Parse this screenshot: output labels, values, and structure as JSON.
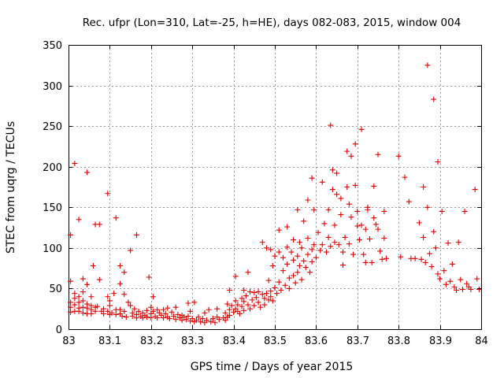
{
  "chart_data": {
    "type": "scatter",
    "title": "Rec. ufpr (Lon=310, Lat=-25, h=HE), days 082-083, 2015, window 004",
    "xlabel": "GPS time / Days of year 2015",
    "ylabel": "STEC from uqrg / TECUs",
    "xlim": [
      83,
      84
    ],
    "ylim": [
      0,
      350
    ],
    "xticks": [
      "83",
      "83.1",
      "83.2",
      "83.3",
      "83.4",
      "83.5",
      "83.6",
      "83.7",
      "83.8",
      "83.9",
      "84"
    ],
    "yticks": [
      "0",
      "50",
      "100",
      "150",
      "200",
      "250",
      "300",
      "350"
    ],
    "grid": true,
    "legend": "none",
    "marker": "plus",
    "color": "#e00000",
    "series": [
      {
        "points": [
          [
            83.005,
            116
          ],
          [
            83.005,
            59
          ],
          [
            83.005,
            33
          ],
          [
            83.005,
            27
          ],
          [
            83.005,
            21
          ],
          [
            83.015,
            204
          ],
          [
            83.015,
            44
          ],
          [
            83.015,
            38
          ],
          [
            83.015,
            30
          ],
          [
            83.015,
            22
          ],
          [
            83.025,
            135
          ],
          [
            83.025,
            40
          ],
          [
            83.025,
            33
          ],
          [
            83.025,
            26
          ],
          [
            83.025,
            22
          ],
          [
            83.035,
            62
          ],
          [
            83.035,
            46
          ],
          [
            83.035,
            35
          ],
          [
            83.035,
            27
          ],
          [
            83.035,
            20
          ],
          [
            83.045,
            193
          ],
          [
            83.045,
            55
          ],
          [
            83.045,
            31
          ],
          [
            83.045,
            26
          ],
          [
            83.045,
            19
          ],
          [
            83.055,
            40
          ],
          [
            83.055,
            29
          ],
          [
            83.055,
            24
          ],
          [
            83.055,
            19
          ],
          [
            83.06,
            78
          ],
          [
            83.065,
            129
          ],
          [
            83.065,
            27
          ],
          [
            83.065,
            22
          ],
          [
            83.07,
            28
          ],
          [
            83.075,
            129
          ],
          [
            83.075,
            61
          ],
          [
            83.08,
            22
          ],
          [
            83.085,
            25
          ],
          [
            83.085,
            19
          ],
          [
            83.095,
            167
          ],
          [
            83.095,
            40
          ],
          [
            83.095,
            22
          ],
          [
            83.1,
            35
          ],
          [
            83.1,
            29
          ],
          [
            83.1,
            18
          ],
          [
            83.105,
            20
          ],
          [
            83.11,
            44
          ],
          [
            83.115,
            137
          ],
          [
            83.115,
            24
          ],
          [
            83.115,
            18
          ],
          [
            83.125,
            78
          ],
          [
            83.125,
            56
          ],
          [
            83.125,
            24
          ],
          [
            83.125,
            19
          ],
          [
            83.13,
            16
          ],
          [
            83.135,
            70
          ],
          [
            83.135,
            43
          ],
          [
            83.135,
            22
          ],
          [
            83.14,
            15
          ],
          [
            83.145,
            33
          ],
          [
            83.15,
            97
          ],
          [
            83.15,
            29
          ],
          [
            83.155,
            20
          ],
          [
            83.155,
            16
          ],
          [
            83.16,
            25
          ],
          [
            83.165,
            116
          ],
          [
            83.165,
            18
          ],
          [
            83.165,
            14
          ],
          [
            83.17,
            22
          ],
          [
            83.175,
            16
          ],
          [
            83.18,
            20
          ],
          [
            83.18,
            14
          ],
          [
            83.185,
            17
          ],
          [
            83.19,
            23
          ],
          [
            83.19,
            15
          ],
          [
            83.195,
            64
          ],
          [
            83.2,
            27
          ],
          [
            83.2,
            19
          ],
          [
            83.2,
            14
          ],
          [
            83.205,
            40
          ],
          [
            83.205,
            22
          ],
          [
            83.21,
            16
          ],
          [
            83.215,
            24
          ],
          [
            83.215,
            14
          ],
          [
            83.22,
            20
          ],
          [
            83.225,
            17
          ],
          [
            83.23,
            24
          ],
          [
            83.23,
            14
          ],
          [
            83.235,
            19
          ],
          [
            83.24,
            26
          ],
          [
            83.24,
            15
          ],
          [
            83.245,
            13
          ],
          [
            83.25,
            21
          ],
          [
            83.255,
            16
          ],
          [
            83.26,
            27
          ],
          [
            83.26,
            12
          ],
          [
            83.265,
            18
          ],
          [
            83.27,
            14
          ],
          [
            83.275,
            17
          ],
          [
            83.275,
            11
          ],
          [
            83.28,
            15
          ],
          [
            83.285,
            12
          ],
          [
            83.29,
            32
          ],
          [
            83.29,
            16
          ],
          [
            83.295,
            22
          ],
          [
            83.295,
            10
          ],
          [
            83.3,
            13
          ],
          [
            83.305,
            33
          ],
          [
            83.305,
            9
          ],
          [
            83.31,
            11
          ],
          [
            83.315,
            15
          ],
          [
            83.32,
            9
          ],
          [
            83.325,
            13
          ],
          [
            83.33,
            20
          ],
          [
            83.33,
            8
          ],
          [
            83.335,
            11
          ],
          [
            83.34,
            24
          ],
          [
            83.345,
            9
          ],
          [
            83.35,
            13
          ],
          [
            83.355,
            8
          ],
          [
            83.36,
            25
          ],
          [
            83.36,
            15
          ],
          [
            83.365,
            12
          ],
          [
            83.375,
            14
          ],
          [
            83.38,
            20
          ],
          [
            83.38,
            11
          ],
          [
            83.385,
            15
          ],
          [
            83.385,
            31
          ],
          [
            83.39,
            48
          ],
          [
            83.39,
            24
          ],
          [
            83.39,
            17
          ],
          [
            83.395,
            29
          ],
          [
            83.4,
            21
          ],
          [
            83.405,
            65
          ],
          [
            83.405,
            35
          ],
          [
            83.405,
            25
          ],
          [
            83.41,
            30
          ],
          [
            83.41,
            22
          ],
          [
            83.415,
            19
          ],
          [
            83.42,
            38
          ],
          [
            83.42,
            28
          ],
          [
            83.425,
            48
          ],
          [
            83.425,
            34
          ],
          [
            83.425,
            23
          ],
          [
            83.43,
            41
          ],
          [
            83.435,
            70
          ],
          [
            83.435,
            30
          ],
          [
            83.44,
            46
          ],
          [
            83.44,
            25
          ],
          [
            83.445,
            36
          ],
          [
            83.45,
            45
          ],
          [
            83.45,
            29
          ],
          [
            83.455,
            39
          ],
          [
            83.46,
            46
          ],
          [
            83.46,
            33
          ],
          [
            83.465,
            27
          ],
          [
            83.47,
            107
          ],
          [
            83.47,
            43
          ],
          [
            83.475,
            38
          ],
          [
            83.475,
            30
          ],
          [
            83.48,
            100
          ],
          [
            83.48,
            44
          ],
          [
            83.485,
            60
          ],
          [
            83.485,
            36
          ],
          [
            83.49,
            98
          ],
          [
            83.49,
            47
          ],
          [
            83.49,
            40
          ],
          [
            83.495,
            78
          ],
          [
            83.495,
            35
          ],
          [
            83.5,
            90
          ],
          [
            83.5,
            51
          ],
          [
            83.505,
            44
          ],
          [
            83.51,
            122
          ],
          [
            83.51,
            95
          ],
          [
            83.51,
            58
          ],
          [
            83.515,
            48
          ],
          [
            83.52,
            88
          ],
          [
            83.52,
            72
          ],
          [
            83.525,
            54
          ],
          [
            83.53,
            126
          ],
          [
            83.53,
            101
          ],
          [
            83.53,
            80
          ],
          [
            83.535,
            63
          ],
          [
            83.535,
            50
          ],
          [
            83.54,
            95
          ],
          [
            83.545,
            110
          ],
          [
            83.545,
            85
          ],
          [
            83.545,
            66
          ],
          [
            83.55,
            57
          ],
          [
            83.555,
            147
          ],
          [
            83.555,
            90
          ],
          [
            83.555,
            70
          ],
          [
            83.56,
            107
          ],
          [
            83.56,
            78
          ],
          [
            83.565,
            100
          ],
          [
            83.565,
            61
          ],
          [
            83.57,
            133
          ],
          [
            83.57,
            84
          ],
          [
            83.575,
            76
          ],
          [
            83.58,
            159
          ],
          [
            83.58,
            112
          ],
          [
            83.58,
            92
          ],
          [
            83.585,
            70
          ],
          [
            83.59,
            186
          ],
          [
            83.59,
            98
          ],
          [
            83.59,
            83
          ],
          [
            83.595,
            147
          ],
          [
            83.595,
            104
          ],
          [
            83.6,
            88
          ],
          [
            83.605,
            119
          ],
          [
            83.61,
            97
          ],
          [
            83.615,
            181
          ],
          [
            83.615,
            104
          ],
          [
            83.62,
            130
          ],
          [
            83.625,
            95
          ],
          [
            83.63,
            147
          ],
          [
            83.63,
            113
          ],
          [
            83.635,
            251
          ],
          [
            83.635,
            102
          ],
          [
            83.64,
            196
          ],
          [
            83.64,
            172
          ],
          [
            83.645,
            128
          ],
          [
            83.645,
            107
          ],
          [
            83.65,
            192
          ],
          [
            83.65,
            166
          ],
          [
            83.655,
            104
          ],
          [
            83.66,
            161
          ],
          [
            83.66,
            141
          ],
          [
            83.665,
            95
          ],
          [
            83.665,
            79
          ],
          [
            83.67,
            113
          ],
          [
            83.675,
            219
          ],
          [
            83.675,
            175
          ],
          [
            83.68,
            154
          ],
          [
            83.68,
            105
          ],
          [
            83.685,
            213
          ],
          [
            83.685,
            138
          ],
          [
            83.69,
            92
          ],
          [
            83.695,
            228
          ],
          [
            83.695,
            177
          ],
          [
            83.7,
            145
          ],
          [
            83.7,
            127
          ],
          [
            83.705,
            110
          ],
          [
            83.71,
            246
          ],
          [
            83.71,
            128
          ],
          [
            83.715,
            92
          ],
          [
            83.72,
            123
          ],
          [
            83.72,
            82
          ],
          [
            83.725,
            150
          ],
          [
            83.725,
            147
          ],
          [
            83.73,
            111
          ],
          [
            83.735,
            82
          ],
          [
            83.74,
            176
          ],
          [
            83.74,
            137
          ],
          [
            83.745,
            129
          ],
          [
            83.75,
            215
          ],
          [
            83.75,
            123
          ],
          [
            83.755,
            96
          ],
          [
            83.76,
            86
          ],
          [
            83.765,
            145
          ],
          [
            83.765,
            112
          ],
          [
            83.77,
            87
          ],
          [
            83.8,
            213
          ],
          [
            83.805,
            89
          ],
          [
            83.815,
            187
          ],
          [
            83.825,
            157
          ],
          [
            83.83,
            87
          ],
          [
            83.84,
            87
          ],
          [
            83.85,
            131
          ],
          [
            83.855,
            86
          ],
          [
            83.86,
            175
          ],
          [
            83.86,
            113
          ],
          [
            83.865,
            82
          ],
          [
            83.87,
            325
          ],
          [
            83.87,
            150
          ],
          [
            83.875,
            93
          ],
          [
            83.88,
            77
          ],
          [
            83.885,
            283
          ],
          [
            83.885,
            120
          ],
          [
            83.89,
            100
          ],
          [
            83.895,
            206
          ],
          [
            83.895,
            68
          ],
          [
            83.9,
            62
          ],
          [
            83.905,
            145
          ],
          [
            83.91,
            72
          ],
          [
            83.915,
            55
          ],
          [
            83.92,
            106
          ],
          [
            83.925,
            59
          ],
          [
            83.93,
            80
          ],
          [
            83.935,
            52
          ],
          [
            83.94,
            48
          ],
          [
            83.945,
            107
          ],
          [
            83.95,
            61
          ],
          [
            83.955,
            49
          ],
          [
            83.96,
            145
          ],
          [
            83.965,
            56
          ],
          [
            83.97,
            52
          ],
          [
            83.975,
            49
          ],
          [
            83.985,
            172
          ],
          [
            83.99,
            62
          ],
          [
            83.995,
            49
          ]
        ]
      }
    ]
  }
}
